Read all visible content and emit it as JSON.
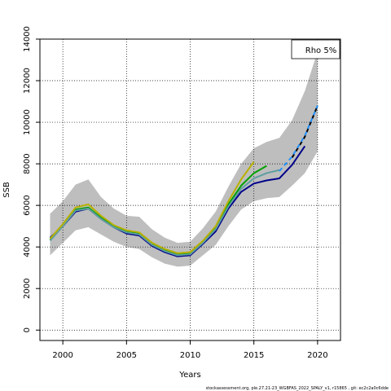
{
  "chart_data": {
    "type": "line",
    "xlabel": "Years",
    "ylabel": "SSB",
    "xlim": [
      1998.2,
      2021.8
    ],
    "ylim": [
      -500,
      14000
    ],
    "x_ticks": [
      2000,
      2005,
      2010,
      2015,
      2020
    ],
    "y_ticks": [
      0,
      2000,
      4000,
      6000,
      8000,
      10000,
      12000,
      14000
    ],
    "grid": "dotted",
    "legend": {
      "placement": "top-right",
      "label": "Rho 5%"
    },
    "footer": "stockassessment.org, ple.27.21-23_WGBFAS_2022_SPALY_v1, r15865 , git: ec2c2a0c6dde",
    "confidence_band": {
      "color": "#bebebe",
      "x": [
        1999,
        2000,
        2001,
        2002,
        2003,
        2004,
        2005,
        2006,
        2007,
        2008,
        2009,
        2010,
        2011,
        2012,
        2013,
        2014,
        2015,
        2016,
        2017,
        2018,
        2019,
        2020
      ],
      "upper": [
        5600,
        6200,
        7000,
        7250,
        6400,
        5850,
        5500,
        5450,
        4850,
        4450,
        4200,
        4250,
        4900,
        5700,
        6900,
        8000,
        8750,
        9050,
        9250,
        10100,
        11500,
        13400
      ],
      "lower": [
        3600,
        4200,
        4800,
        4950,
        4600,
        4250,
        4000,
        3900,
        3500,
        3200,
        3050,
        3100,
        3600,
        4100,
        5000,
        5800,
        6200,
        6350,
        6400,
        6950,
        7550,
        8600
      ]
    },
    "series": [
      {
        "color": "#00008b",
        "dashed": false,
        "x": [
          1999,
          2000,
          2001,
          2002,
          2003,
          2004,
          2005,
          2006,
          2007,
          2008,
          2009,
          2010,
          2011,
          2012,
          2013,
          2014,
          2015,
          2016,
          2017,
          2018,
          2019
        ],
        "values": [
          4450,
          5000,
          5700,
          5850,
          5350,
          4950,
          4650,
          4550,
          4050,
          3750,
          3550,
          3600,
          4150,
          4750,
          5850,
          6650,
          7050,
          7200,
          7300,
          7950,
          8850
        ]
      },
      {
        "color": "#00a000",
        "dashed": false,
        "x": [
          1999,
          2000,
          2001,
          2002,
          2003,
          2004,
          2005,
          2006,
          2007,
          2008,
          2009,
          2010,
          2011,
          2012,
          2013,
          2014,
          2015,
          2016
        ],
        "values": [
          4350,
          5050,
          5800,
          5900,
          5400,
          5000,
          4750,
          4650,
          4150,
          3850,
          3650,
          3700,
          4250,
          4900,
          6050,
          6950,
          7550,
          7900
        ]
      },
      {
        "color": "#5f9ea0",
        "dashed": false,
        "x": [
          1999,
          2000,
          2001,
          2002,
          2003,
          2004,
          2005,
          2006,
          2007,
          2008,
          2009,
          2010,
          2011,
          2012,
          2013,
          2014,
          2015,
          2016,
          2017
        ],
        "values": [
          4300,
          5000,
          5750,
          5850,
          5350,
          4950,
          4700,
          4600,
          4100,
          3800,
          3600,
          3650,
          4200,
          4850,
          5950,
          6800,
          7300,
          7550,
          7700
        ]
      },
      {
        "color": "#b8b000",
        "dashed": false,
        "x": [
          1999,
          2000,
          2001,
          2002,
          2003,
          2004,
          2005,
          2006,
          2007,
          2008,
          2009,
          2010,
          2011,
          2012,
          2013,
          2014,
          2015
        ],
        "values": [
          4400,
          5100,
          5900,
          6050,
          5500,
          5050,
          4800,
          4700,
          4200,
          3900,
          3700,
          3750,
          4300,
          5000,
          6200,
          7250,
          8100
        ]
      },
      {
        "color": "#000000",
        "dashed": true,
        "x": [
          2018,
          2019,
          2020
        ],
        "values": [
          8300,
          9300,
          10800
        ]
      },
      {
        "color": "#1e90ff",
        "dashed": true,
        "x": [
          2017,
          2018,
          2019,
          2020
        ],
        "values": [
          7650,
          8350,
          9350,
          10800
        ]
      }
    ]
  }
}
